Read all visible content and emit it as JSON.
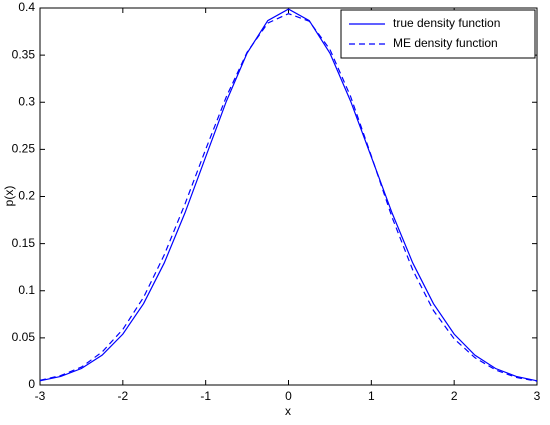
{
  "chart_data": {
    "type": "line",
    "xlabel": "x",
    "ylabel": "p(x)",
    "x": [
      -3,
      -2.75,
      -2.5,
      -2.25,
      -2,
      -1.75,
      -1.5,
      -1.25,
      -1,
      -0.75,
      -0.5,
      -0.25,
      0,
      0.25,
      0.5,
      0.75,
      1,
      1.25,
      1.5,
      1.75,
      2,
      2.25,
      2.5,
      2.75,
      3
    ],
    "series": [
      {
        "name": "true density function",
        "color": "#0000ff",
        "linestyle": "solid",
        "values": [
          0.0044,
          0.0091,
          0.0175,
          0.0317,
          0.054,
          0.0863,
          0.1295,
          0.1826,
          0.242,
          0.3011,
          0.3521,
          0.3867,
          0.3989,
          0.3867,
          0.3521,
          0.3011,
          0.242,
          0.1826,
          0.1295,
          0.0863,
          0.054,
          0.0317,
          0.0175,
          0.0091,
          0.0044
        ]
      },
      {
        "name": "ME density function",
        "color": "#0000ff",
        "linestyle": "dashed",
        "values": [
          0.005,
          0.01,
          0.019,
          0.035,
          0.059,
          0.093,
          0.138,
          0.192,
          0.25,
          0.306,
          0.353,
          0.384,
          0.394,
          0.386,
          0.356,
          0.306,
          0.243,
          0.178,
          0.122,
          0.079,
          0.049,
          0.029,
          0.016,
          0.008,
          0.004
        ]
      }
    ],
    "xlim": [
      -3,
      3
    ],
    "xticks": [
      -3,
      -2,
      -1,
      0,
      1,
      2,
      3
    ],
    "ylim": [
      0,
      0.4
    ],
    "yticks": [
      0,
      0.05,
      0.1,
      0.15,
      0.2,
      0.25,
      0.3,
      0.35,
      0.4
    ],
    "legend": "upper right",
    "grid": false
  }
}
